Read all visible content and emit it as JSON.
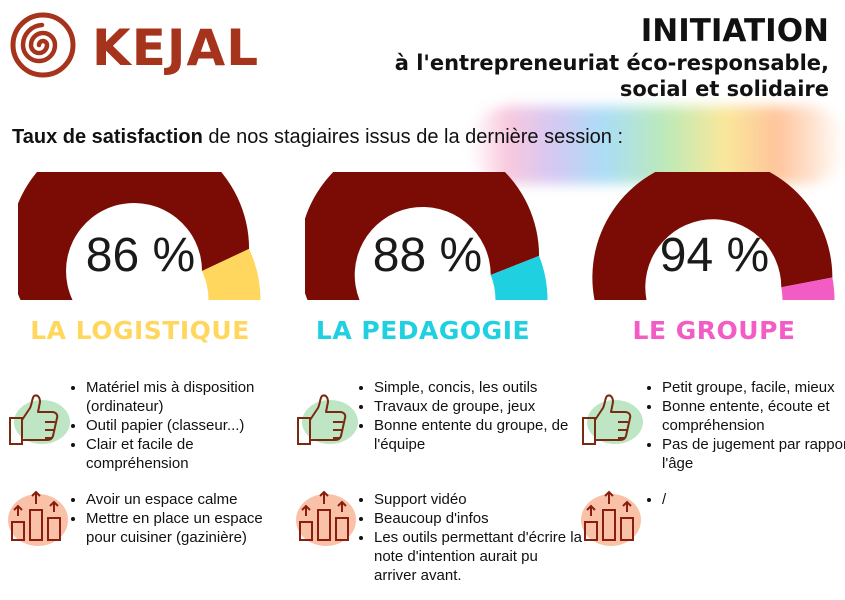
{
  "brand": {
    "name": "KEJAL"
  },
  "heading": {
    "line1": "INITIATION",
    "line2": "à l'entrepreneuriat éco-responsable,",
    "line3": "social et solidaire"
  },
  "subtitle": {
    "bold": "Taux de satisfaction",
    "rest": " de nos stagiaires issus de la dernière session :"
  },
  "colors": {
    "primary": "#7a0c05",
    "logistique": "#ffd75e",
    "pedagogie": "#1fd0e0",
    "groupe": "#f25cc4",
    "brand": "#a6331b"
  },
  "categories": [
    {
      "title": "LA LOGISTIQUE",
      "percent_label": "86 %",
      "percent": 86,
      "accent": "#ffd75e",
      "positives": [
        "Matériel mis à disposition (ordinateur)",
        "Outil papier (classeur...)",
        "Clair et facile de compréhension"
      ],
      "improvements": [
        "Avoir un espace calme",
        "Mettre en place un espace pour cuisiner (gazinière)"
      ]
    },
    {
      "title": "LA PEDAGOGIE",
      "percent_label": "88 %",
      "percent": 88,
      "accent": "#1fd0e0",
      "positives": [
        "Simple, concis, les outils",
        "Travaux de groupe, jeux",
        "Bonne entente du groupe, de l'équipe"
      ],
      "improvements": [
        "Support vidéo",
        "Beaucoup d'infos",
        "Les outils permettant d'écrire la note d'intention aurait pu arriver avant."
      ]
    },
    {
      "title": "LE GROUPE",
      "percent_label": "94 %",
      "percent": 94,
      "accent": "#f25cc4",
      "positives": [
        "Petit groupe, facile, mieux",
        "Bonne entente, écoute et compréhension",
        "Pas de jugement par rapport à l'âge"
      ],
      "improvements": [
        "/"
      ]
    }
  ],
  "icons": {
    "positive": "thumbs-up-icon",
    "improvement": "growth-bars-icon",
    "logo": "spiral-icon"
  }
}
